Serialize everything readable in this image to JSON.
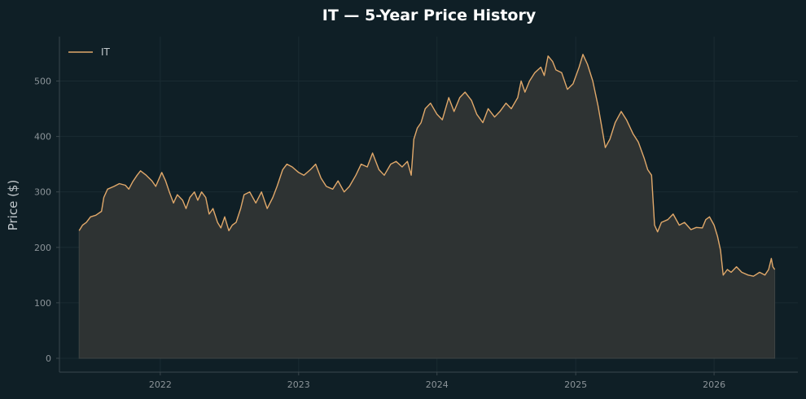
{
  "chart_data": {
    "type": "area",
    "title": "IT — 5-Year Price History",
    "xlabel": "",
    "ylabel": "Price ($)",
    "x_ticks": [
      "2022",
      "2023",
      "2024",
      "2025",
      "2026"
    ],
    "y_ticks": [
      0,
      100,
      200,
      300,
      400,
      500
    ],
    "xlim": [
      "2021-04-10",
      "2026-08-10"
    ],
    "ylim": [
      -25,
      580
    ],
    "grid": true,
    "legend": "top-left",
    "series": [
      {
        "name": "IT",
        "color": "#e0a86a",
        "fill": "#2e3333",
        "points": [
          [
            "2021-06-01",
            230
          ],
          [
            "2021-06-10",
            240
          ],
          [
            "2021-06-20",
            245
          ],
          [
            "2021-07-01",
            255
          ],
          [
            "2021-07-15",
            258
          ],
          [
            "2021-07-30",
            265
          ],
          [
            "2021-08-05",
            290
          ],
          [
            "2021-08-15",
            305
          ],
          [
            "2021-09-01",
            310
          ],
          [
            "2021-09-15",
            315
          ],
          [
            "2021-10-01",
            312
          ],
          [
            "2021-10-10",
            305
          ],
          [
            "2021-10-20",
            318
          ],
          [
            "2021-11-01",
            330
          ],
          [
            "2021-11-10",
            338
          ],
          [
            "2021-11-25",
            330
          ],
          [
            "2021-12-10",
            320
          ],
          [
            "2021-12-20",
            310
          ],
          [
            "2022-01-05",
            335
          ],
          [
            "2022-01-15",
            320
          ],
          [
            "2022-01-25",
            300
          ],
          [
            "2022-02-05",
            280
          ],
          [
            "2022-02-15",
            295
          ],
          [
            "2022-03-01",
            285
          ],
          [
            "2022-03-10",
            270
          ],
          [
            "2022-03-20",
            290
          ],
          [
            "2022-04-01",
            300
          ],
          [
            "2022-04-10",
            285
          ],
          [
            "2022-04-20",
            300
          ],
          [
            "2022-05-01",
            290
          ],
          [
            "2022-05-10",
            260
          ],
          [
            "2022-05-20",
            270
          ],
          [
            "2022-06-01",
            245
          ],
          [
            "2022-06-10",
            235
          ],
          [
            "2022-06-20",
            255
          ],
          [
            "2022-07-01",
            230
          ],
          [
            "2022-07-10",
            240
          ],
          [
            "2022-07-20",
            245
          ],
          [
            "2022-08-01",
            270
          ],
          [
            "2022-08-10",
            295
          ],
          [
            "2022-08-25",
            300
          ],
          [
            "2022-09-10",
            280
          ],
          [
            "2022-09-25",
            300
          ],
          [
            "2022-10-10",
            270
          ],
          [
            "2022-10-25",
            290
          ],
          [
            "2022-11-05",
            310
          ],
          [
            "2022-11-20",
            340
          ],
          [
            "2022-12-01",
            350
          ],
          [
            "2022-12-15",
            345
          ],
          [
            "2023-01-01",
            335
          ],
          [
            "2023-01-15",
            330
          ],
          [
            "2023-02-01",
            340
          ],
          [
            "2023-02-15",
            350
          ],
          [
            "2023-03-01",
            325
          ],
          [
            "2023-03-15",
            310
          ],
          [
            "2023-04-01",
            305
          ],
          [
            "2023-04-15",
            320
          ],
          [
            "2023-05-01",
            300
          ],
          [
            "2023-05-15",
            310
          ],
          [
            "2023-06-01",
            330
          ],
          [
            "2023-06-15",
            350
          ],
          [
            "2023-07-01",
            345
          ],
          [
            "2023-07-15",
            370
          ],
          [
            "2023-08-01",
            340
          ],
          [
            "2023-08-15",
            330
          ],
          [
            "2023-09-01",
            350
          ],
          [
            "2023-09-15",
            355
          ],
          [
            "2023-10-01",
            345
          ],
          [
            "2023-10-15",
            355
          ],
          [
            "2023-10-25",
            330
          ],
          [
            "2023-11-01",
            395
          ],
          [
            "2023-11-10",
            415
          ],
          [
            "2023-11-20",
            425
          ],
          [
            "2023-12-01",
            450
          ],
          [
            "2023-12-15",
            460
          ],
          [
            "2024-01-01",
            440
          ],
          [
            "2024-01-15",
            430
          ],
          [
            "2024-02-01",
            470
          ],
          [
            "2024-02-15",
            445
          ],
          [
            "2024-03-01",
            470
          ],
          [
            "2024-03-15",
            480
          ],
          [
            "2024-04-01",
            465
          ],
          [
            "2024-04-15",
            440
          ],
          [
            "2024-05-01",
            425
          ],
          [
            "2024-05-15",
            450
          ],
          [
            "2024-06-01",
            435
          ],
          [
            "2024-06-15",
            445
          ],
          [
            "2024-07-01",
            460
          ],
          [
            "2024-07-15",
            450
          ],
          [
            "2024-08-01",
            470
          ],
          [
            "2024-08-10",
            500
          ],
          [
            "2024-08-20",
            480
          ],
          [
            "2024-09-01",
            500
          ],
          [
            "2024-09-15",
            515
          ],
          [
            "2024-10-01",
            525
          ],
          [
            "2024-10-10",
            510
          ],
          [
            "2024-10-20",
            545
          ],
          [
            "2024-11-01",
            535
          ],
          [
            "2024-11-10",
            520
          ],
          [
            "2024-11-25",
            515
          ],
          [
            "2024-12-10",
            485
          ],
          [
            "2024-12-25",
            495
          ],
          [
            "2025-01-10",
            525
          ],
          [
            "2025-01-20",
            548
          ],
          [
            "2025-02-01",
            530
          ],
          [
            "2025-02-15",
            500
          ],
          [
            "2025-03-01",
            455
          ],
          [
            "2025-03-10",
            420
          ],
          [
            "2025-03-20",
            380
          ],
          [
            "2025-04-01",
            395
          ],
          [
            "2025-04-15",
            425
          ],
          [
            "2025-05-01",
            445
          ],
          [
            "2025-05-15",
            430
          ],
          [
            "2025-06-01",
            405
          ],
          [
            "2025-06-15",
            390
          ],
          [
            "2025-07-01",
            360
          ],
          [
            "2025-07-10",
            340
          ],
          [
            "2025-07-20",
            330
          ],
          [
            "2025-07-28",
            240
          ],
          [
            "2025-08-05",
            228
          ],
          [
            "2025-08-15",
            245
          ],
          [
            "2025-09-01",
            250
          ],
          [
            "2025-09-15",
            260
          ],
          [
            "2025-10-01",
            240
          ],
          [
            "2025-10-15",
            245
          ],
          [
            "2025-11-01",
            232
          ],
          [
            "2025-11-15",
            236
          ],
          [
            "2025-12-01",
            235
          ],
          [
            "2025-12-10",
            250
          ],
          [
            "2025-12-20",
            255
          ],
          [
            "2026-01-01",
            240
          ],
          [
            "2026-01-10",
            220
          ],
          [
            "2026-01-18",
            195
          ],
          [
            "2026-01-25",
            150
          ],
          [
            "2026-02-05",
            160
          ],
          [
            "2026-02-15",
            155
          ],
          [
            "2026-03-01",
            165
          ],
          [
            "2026-03-15",
            155
          ],
          [
            "2026-04-01",
            150
          ],
          [
            "2026-04-15",
            148
          ],
          [
            "2026-05-01",
            155
          ],
          [
            "2026-05-15",
            150
          ],
          [
            "2026-05-25",
            160
          ],
          [
            "2026-06-01",
            180
          ],
          [
            "2026-06-05",
            165
          ],
          [
            "2026-06-10",
            160
          ]
        ]
      }
    ]
  }
}
